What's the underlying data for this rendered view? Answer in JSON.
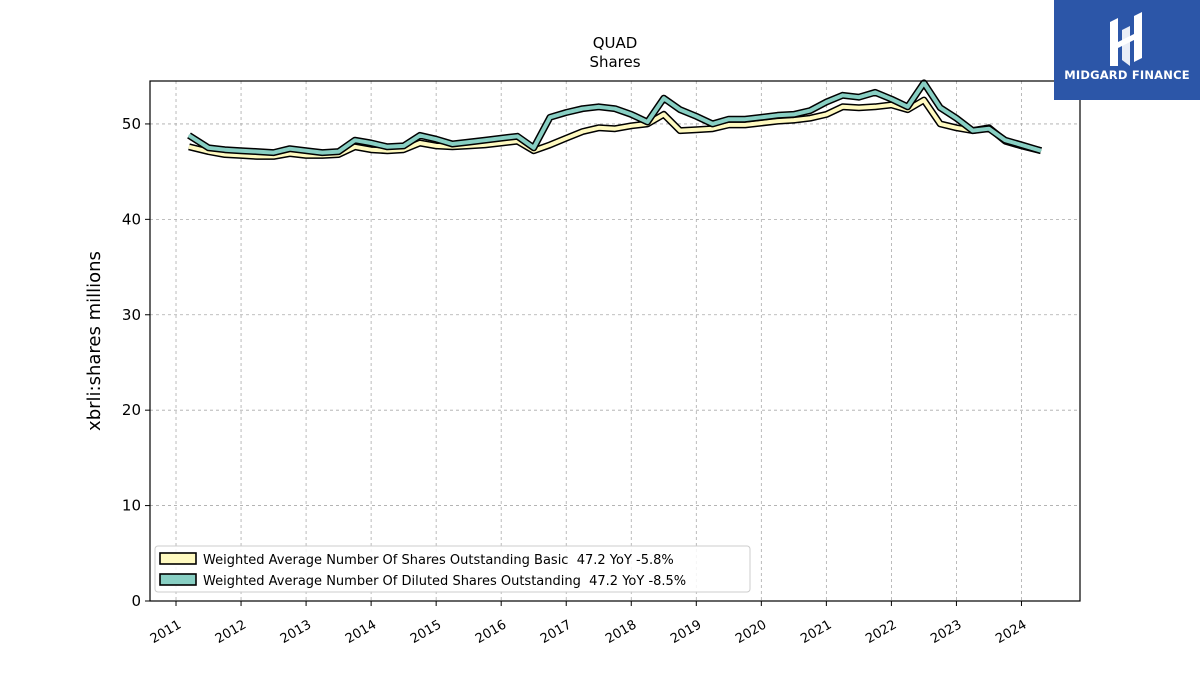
{
  "brand": {
    "name": "MIDGARD FINANCE",
    "icon": "midgard-finance-logo-icon",
    "color": "#2c56a8"
  },
  "chart_data": {
    "type": "line",
    "title": "QUAD",
    "subtitle": "Shares",
    "xlabel": "",
    "ylabel": "xbrli:shares millions",
    "xlim": [
      2010.6,
      2024.9
    ],
    "ylim": [
      0,
      54.5
    ],
    "yticks": [
      0,
      10,
      20,
      30,
      40,
      50
    ],
    "xticks": [
      "2011",
      "2012",
      "2013",
      "2014",
      "2015",
      "2016",
      "2017",
      "2018",
      "2019",
      "2020",
      "2021",
      "2022",
      "2023",
      "2024"
    ],
    "grid": true,
    "legend_position": "lower-left",
    "series": [
      {
        "name": "Weighted Average Number Of Shares Outstanding Basic",
        "legend_label": "Weighted Average Number Of Shares Outstanding Basic  47.2 YoY -5.8%",
        "color": "#fffac0",
        "x": [
          2011.2,
          2011.5,
          2011.75,
          2012.0,
          2012.25,
          2012.5,
          2012.75,
          2013.0,
          2013.25,
          2013.5,
          2013.75,
          2014.0,
          2014.25,
          2014.5,
          2014.75,
          2015.0,
          2015.25,
          2015.5,
          2015.75,
          2016.0,
          2016.25,
          2016.5,
          2016.75,
          2017.0,
          2017.25,
          2017.5,
          2017.75,
          2018.0,
          2018.25,
          2018.5,
          2018.75,
          2019.0,
          2019.25,
          2019.5,
          2019.75,
          2020.0,
          2020.25,
          2020.5,
          2020.75,
          2021.0,
          2021.25,
          2021.5,
          2021.75,
          2022.0,
          2022.25,
          2022.5,
          2022.75,
          2023.0,
          2023.25,
          2023.5,
          2023.75,
          2024.0,
          2024.3
        ],
        "values": [
          47.6,
          47.1,
          46.8,
          46.7,
          46.6,
          46.6,
          46.9,
          46.7,
          46.7,
          46.8,
          47.6,
          47.3,
          47.2,
          47.3,
          48.0,
          47.7,
          47.6,
          47.7,
          47.8,
          48.0,
          48.2,
          47.2,
          47.8,
          48.5,
          49.2,
          49.6,
          49.5,
          49.8,
          50.0,
          51.0,
          49.3,
          49.4,
          49.5,
          49.9,
          49.9,
          50.1,
          50.3,
          50.4,
          50.6,
          51.0,
          51.8,
          51.7,
          51.8,
          52.0,
          51.5,
          52.5,
          50.0,
          49.6,
          49.3,
          49.6,
          48.2,
          47.7,
          47.2
        ]
      },
      {
        "name": "Weighted Average Number Of Diluted Shares Outstanding",
        "legend_label": "Weighted Average Number Of Diluted Shares Outstanding  47.2 YoY -8.5%",
        "color": "#88cfc3",
        "x": [
          2011.2,
          2011.5,
          2011.75,
          2012.0,
          2012.25,
          2012.5,
          2012.75,
          2013.0,
          2013.25,
          2013.5,
          2013.75,
          2014.0,
          2014.25,
          2014.5,
          2014.75,
          2015.0,
          2015.25,
          2015.5,
          2015.75,
          2016.0,
          2016.25,
          2016.5,
          2016.75,
          2017.0,
          2017.25,
          2017.5,
          2017.75,
          2018.0,
          2018.25,
          2018.5,
          2018.75,
          2019.0,
          2019.25,
          2019.5,
          2019.75,
          2020.0,
          2020.25,
          2020.5,
          2020.75,
          2021.0,
          2021.25,
          2021.5,
          2021.75,
          2022.0,
          2022.25,
          2022.5,
          2022.75,
          2023.0,
          2023.25,
          2023.5,
          2023.75,
          2024.0,
          2024.3
        ],
        "values": [
          48.8,
          47.5,
          47.3,
          47.2,
          47.1,
          47.0,
          47.4,
          47.2,
          47.0,
          47.1,
          48.3,
          48.0,
          47.6,
          47.7,
          48.8,
          48.4,
          47.9,
          48.1,
          48.3,
          48.5,
          48.7,
          47.5,
          50.7,
          51.2,
          51.6,
          51.8,
          51.6,
          51.0,
          50.2,
          52.7,
          51.5,
          50.8,
          50.0,
          50.5,
          50.5,
          50.7,
          50.9,
          51.0,
          51.4,
          52.3,
          53.0,
          52.8,
          53.3,
          52.6,
          51.8,
          54.3,
          51.7,
          50.6,
          49.3,
          49.5,
          48.3,
          47.8,
          47.2
        ]
      }
    ]
  }
}
